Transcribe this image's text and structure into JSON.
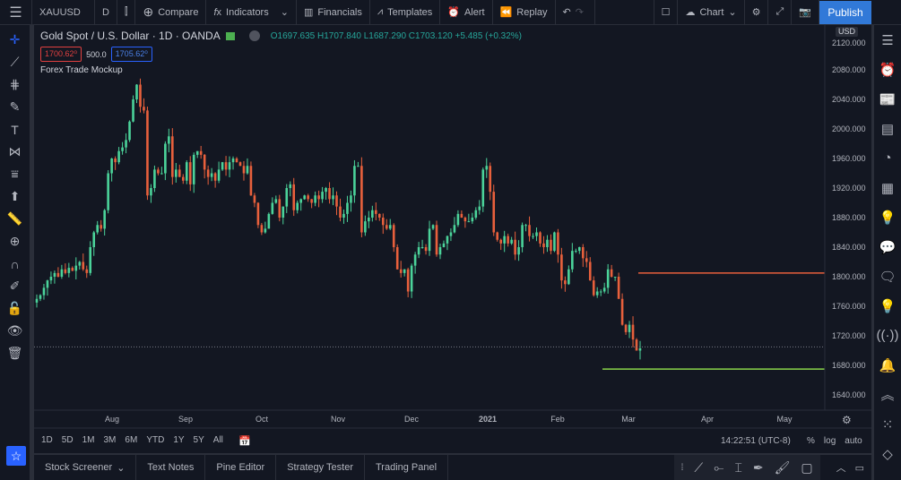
{
  "toolbar": {
    "symbol": "XAUUSD",
    "interval": "D",
    "compare": "Compare",
    "indicators": "Indicators",
    "financials": "Financials",
    "templates": "Templates",
    "alert": "Alert",
    "replay": "Replay",
    "layout": "Chart",
    "publish": "Publish"
  },
  "legend": {
    "title": "Gold Spot / U.S. Dollar · 1D · OANDA",
    "open": "O1697.635",
    "high": "H1707.840",
    "low": "L1687.290",
    "close": "C1703.120",
    "change": "+5.485 (+0.32%)",
    "sell": "1700.62⁰",
    "qty": "500.0",
    "buy": "1705.62⁰",
    "indicator": "Forex Trade Mockup"
  },
  "price_axis": {
    "currency": "USD",
    "ticks": [
      "2120.000",
      "2080.000",
      "2040.000",
      "2000.000",
      "1960.000",
      "1920.000",
      "1880.000",
      "1840.000",
      "1800.000",
      "1760.000",
      "1720.000",
      "1680.000",
      "1640.000"
    ]
  },
  "time_axis": {
    "labels": [
      "Aug",
      "Sep",
      "Oct",
      "Nov",
      "Dec",
      "2021",
      "Feb",
      "Mar",
      "Apr",
      "May"
    ]
  },
  "ranges": [
    "1D",
    "5D",
    "1M",
    "3M",
    "6M",
    "YTD",
    "1Y",
    "5Y",
    "All"
  ],
  "clock": "14:22:51 (UTC-8)",
  "scale": {
    "percent": "%",
    "log": "log",
    "auto": "auto"
  },
  "bottom_tabs": [
    "Stock Screener",
    "Text Notes",
    "Pine Editor",
    "Strategy Tester",
    "Trading Panel"
  ],
  "colors": {
    "up": "#26a69a",
    "down": "#ef5350",
    "upBody": "#4bd39a",
    "downBody": "#e8603c",
    "takeProfit": "#89d44a",
    "stopLoss": "#e8603c",
    "accent": "#3179d8"
  },
  "chart_data": {
    "type": "candlestick",
    "symbol": "XAUUSD",
    "ylim": [
      1620,
      2130
    ],
    "last_price": 1705,
    "stop_loss": 1805,
    "take_profit": 1675,
    "closes": [
      1770,
      1775,
      1785,
      1795,
      1800,
      1805,
      1800,
      1810,
      1805,
      1812,
      1808,
      1815,
      1820,
      1810,
      1805,
      1840,
      1860,
      1870,
      1865,
      1890,
      1940,
      1960,
      1955,
      1970,
      1975,
      1985,
      2010,
      2040,
      2060,
      2030,
      2025,
      1910,
      1920,
      1945,
      1940,
      1940,
      1980,
      1990,
      1935,
      1945,
      1935,
      1930,
      1955,
      1925,
      1965,
      1970,
      1965,
      1945,
      1935,
      1940,
      1930,
      1945,
      1955,
      1945,
      1955,
      1960,
      1955,
      1950,
      1940,
      1950,
      1910,
      1900,
      1870,
      1860,
      1865,
      1885,
      1900,
      1905,
      1880,
      1895,
      1920,
      1925,
      1890,
      1900,
      1905,
      1910,
      1905,
      1900,
      1910,
      1905,
      1915,
      1920,
      1905,
      1910,
      1895,
      1880,
      1885,
      1900,
      1910,
      1950,
      1950,
      1860,
      1875,
      1880,
      1890,
      1885,
      1880,
      1870,
      1865,
      1870,
      1840,
      1810,
      1805,
      1810,
      1780,
      1815,
      1830,
      1840,
      1840,
      1835,
      1865,
      1870,
      1830,
      1840,
      1845,
      1855,
      1860,
      1870,
      1885,
      1880,
      1875,
      1875,
      1880,
      1890,
      1895,
      1945,
      1950,
      1915,
      1860,
      1850,
      1845,
      1855,
      1845,
      1850,
      1830,
      1840,
      1870,
      1870,
      1855,
      1855,
      1860,
      1845,
      1840,
      1850,
      1835,
      1860,
      1830,
      1795,
      1790,
      1810,
      1835,
      1835,
      1840,
      1825,
      1820,
      1795,
      1775,
      1780,
      1780,
      1785,
      1810,
      1800,
      1800,
      1770,
      1735,
      1725,
      1735,
      1715,
      1700,
      1703
    ]
  }
}
